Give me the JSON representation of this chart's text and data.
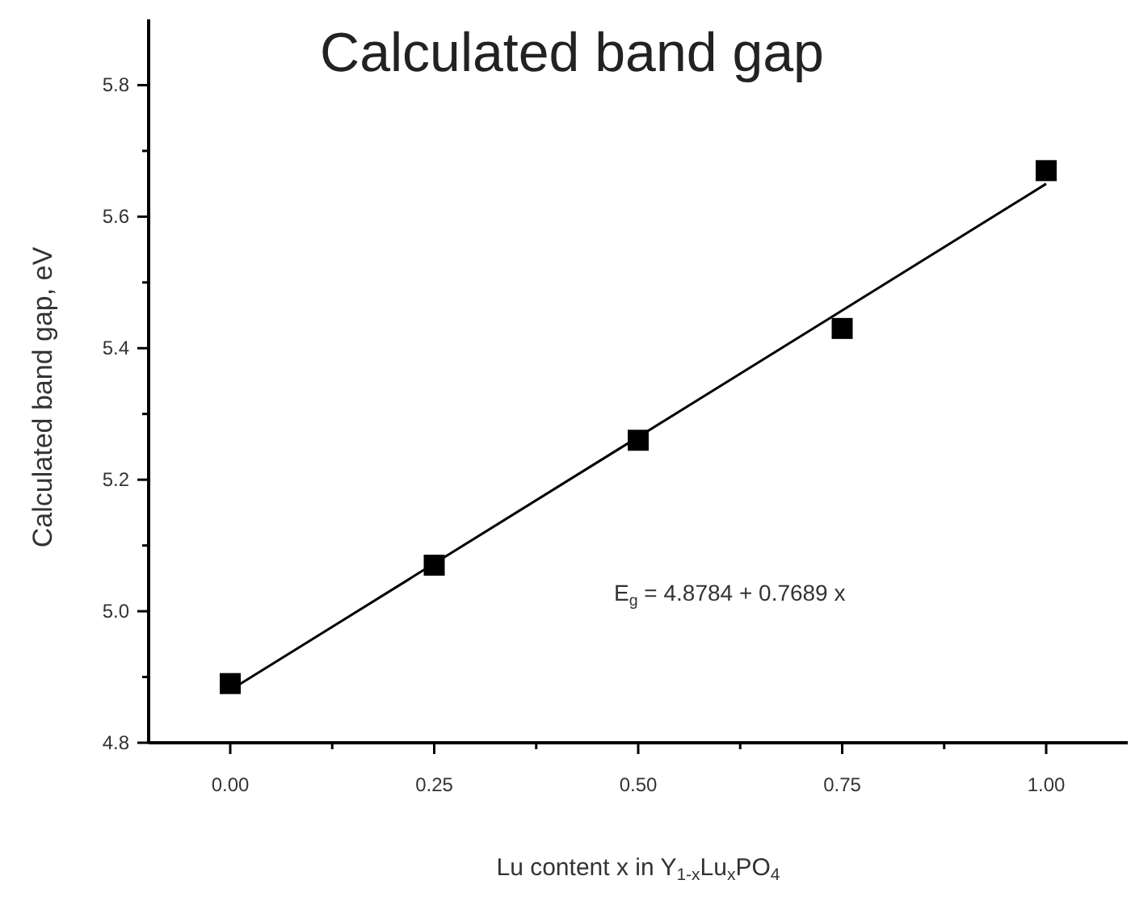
{
  "chart_data": {
    "type": "scatter",
    "title": "Calculated band gap",
    "xlabel": "Lu content x in Y$_{1-x}$Lu$_{x}$PO$_{4}$",
    "ylabel": "Calculated band gap, eV",
    "x": [
      0,
      0.25,
      0.5,
      0.75,
      1.0
    ],
    "series": [
      {
        "type": "scatter",
        "color": "#000000",
        "marker": "square",
        "values": [
          4.89,
          5.07,
          5.26,
          5.43,
          5.67
        ]
      },
      {
        "type": "line",
        "color": "#000000",
        "marker": "none",
        "line_style": "solid",
        "x": [
          0,
          1.0
        ],
        "values": [
          4.88,
          5.65
        ]
      }
    ],
    "annotations": [
      "E$_{g}$ = 4.8784 + 0.7689 x"
    ],
    "xlim": [
      -0.1,
      1.1
    ],
    "ylim": [
      4.8,
      5.9
    ],
    "xticks": [
      {
        "value": 0,
        "label": "0.00"
      },
      {
        "value": 0.125,
        "label": null
      },
      {
        "value": 0.25,
        "label": "0.25"
      },
      {
        "value": 0.375,
        "label": null
      },
      {
        "value": 0.5,
        "label": "0.50"
      },
      {
        "value": 0.625,
        "label": null
      },
      {
        "value": 0.75,
        "label": "0.75"
      },
      {
        "value": 0.875,
        "label": null
      },
      {
        "value": 1.0,
        "label": "1.00"
      }
    ],
    "yticks": [
      {
        "value": 4.8,
        "label": "4.8"
      },
      {
        "value": 4.9,
        "label": null
      },
      {
        "value": 5.0,
        "label": "5.0"
      },
      {
        "value": 5.1,
        "label": null
      },
      {
        "value": 5.2,
        "label": "5.2"
      },
      {
        "value": 5.3,
        "label": null
      },
      {
        "value": 5.4,
        "label": "5.4"
      },
      {
        "value": 5.5,
        "label": null
      },
      {
        "value": 5.6,
        "label": "5.6"
      },
      {
        "value": 5.7,
        "label": null
      },
      {
        "value": 5.8,
        "label": "5.8"
      }
    ],
    "grid": false
  }
}
